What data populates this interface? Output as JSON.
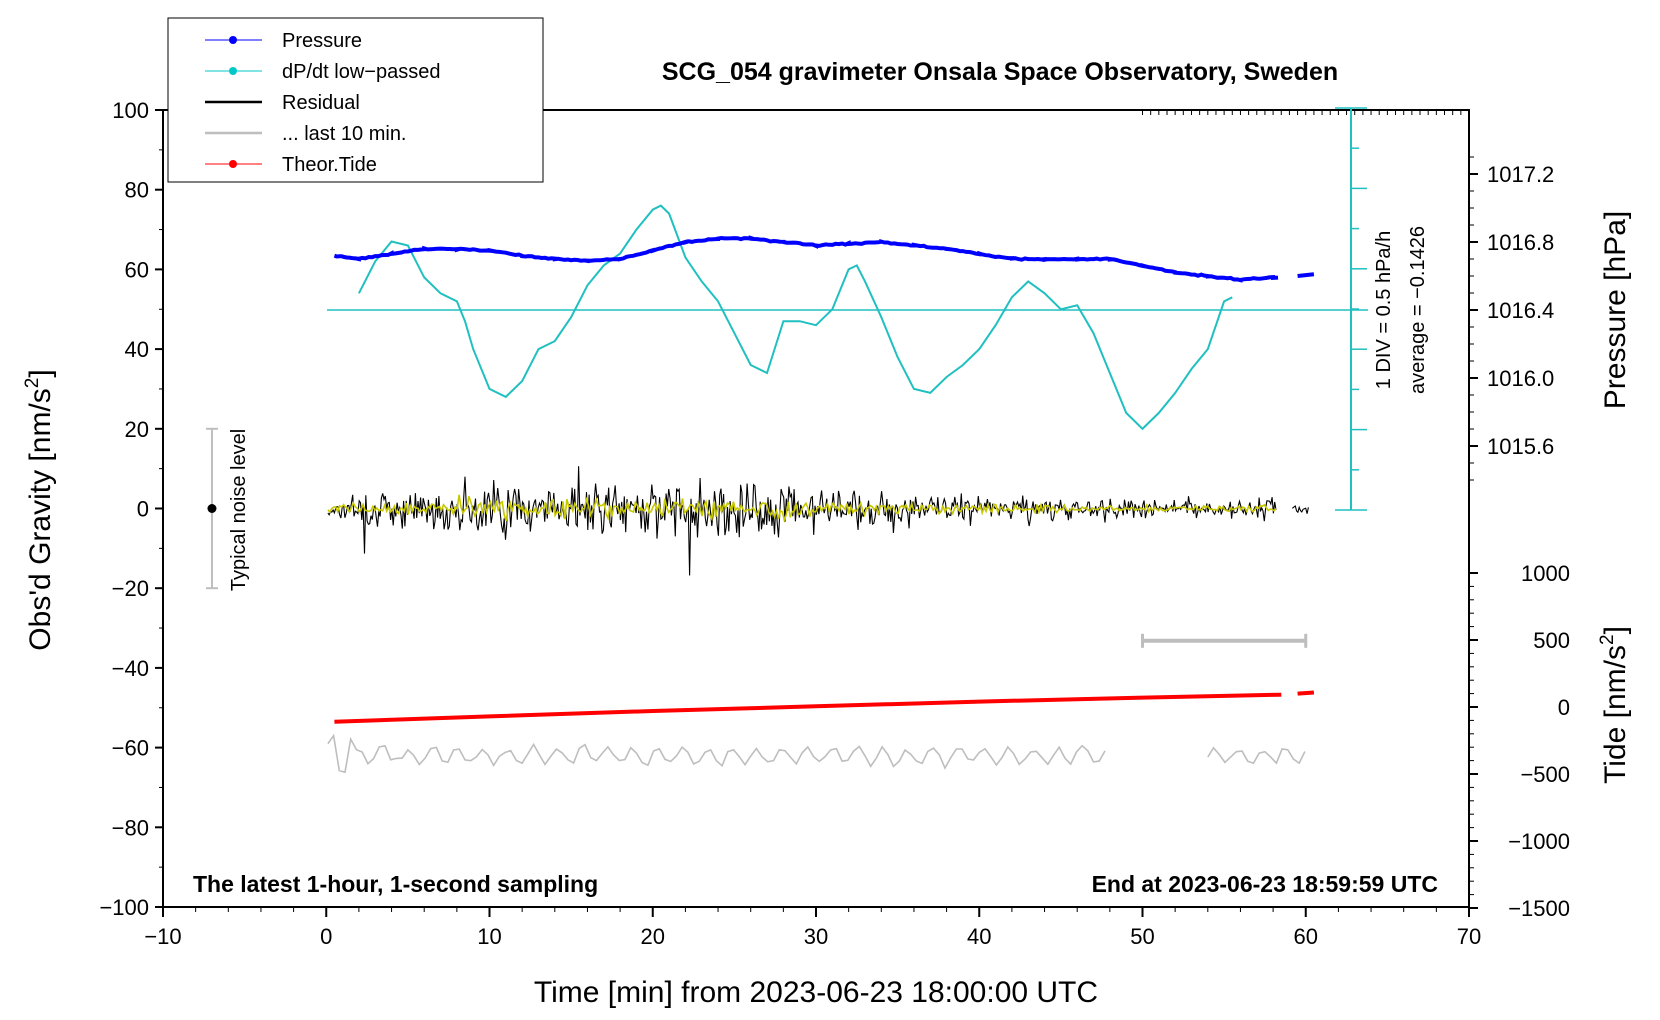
{
  "chart_data": {
    "type": "line",
    "title": "SCG_054 gravimeter Onsala Space Observatory, Sweden",
    "xlabel": "Time [min] from 2023-06-23 18:00:00 UTC",
    "ylabel": "Obs'd Gravity [nm/s",
    "ylabel_sup": "2",
    "ylabel_end": "]",
    "xlim": [
      -10,
      70
    ],
    "ylim": [
      -100,
      100
    ],
    "x_ticks": [
      -10,
      0,
      10,
      20,
      30,
      40,
      50,
      60,
      70
    ],
    "x_tick_labels": [
      "−10",
      "0",
      "10",
      "20",
      "30",
      "40",
      "50",
      "60",
      "70"
    ],
    "y_ticks": [
      -100,
      -80,
      -60,
      -40,
      -20,
      0,
      20,
      40,
      60,
      80,
      100
    ],
    "y_tick_labels": [
      "−100",
      "−80",
      "−60",
      "−40",
      "−20",
      "0",
      "20",
      "40",
      "60",
      "80",
      "100"
    ],
    "pressure_axis": {
      "label": "Pressure [hPa]",
      "ticks": [
        1015.6,
        1016.0,
        1016.4,
        1016.8,
        1017.2
      ],
      "tick_labels": [
        "1015.6",
        "1016.0",
        "1016.4",
        "1016.8",
        "1017.2"
      ]
    },
    "tide_axis": {
      "label": "Tide [nm/s",
      "label_sup": "2",
      "label_end": "]",
      "ticks": [
        -1500,
        -1000,
        -500,
        0,
        500,
        1000
      ],
      "tick_labels": [
        "−1500",
        "−1000",
        "−500",
        "0",
        "500",
        "1000"
      ]
    },
    "dpdt_scale": {
      "div_label": "1 DIV = 0.5 hPa/h",
      "average_label": "average = −0.1426"
    },
    "noise_label": "Typical noise level",
    "noise_range": [
      -20,
      20
    ],
    "bottom_left_note": "The latest 1-hour, 1-second sampling",
    "bottom_right_note": "End at 2023-06-23 18:59:59 UTC",
    "legend": [
      {
        "label": "Pressure",
        "color": "#0000ff",
        "marker": true
      },
      {
        "label": "dP/dt low−passed",
        "color": "#00c8c8",
        "marker": true
      },
      {
        "label": "Residual",
        "color": "#000000",
        "marker": false
      },
      {
        "label": "... last 10 min.",
        "color": "#bebebe",
        "marker": false
      },
      {
        "label": "Theor.Tide",
        "color": "#ff0000",
        "marker": true
      }
    ],
    "colors": {
      "pressure": "#0000ff",
      "dpdt": "#20c0c0",
      "residual": "#000000",
      "residual_smooth": "#c8c800",
      "last10": "#bebebe",
      "tide": "#ff0000"
    },
    "series": [
      {
        "name": "Pressure",
        "unit": "hPa",
        "x": [
          0.5,
          2,
          4,
          6,
          8,
          10,
          12,
          14,
          16,
          18,
          20,
          22,
          24,
          26,
          28,
          30,
          32,
          34,
          36,
          38,
          40,
          42,
          44,
          46,
          48,
          50,
          52,
          54,
          56,
          58,
          59.5,
          60.5
        ],
        "values": [
          1016.72,
          1016.7,
          1016.73,
          1016.76,
          1016.76,
          1016.75,
          1016.72,
          1016.7,
          1016.69,
          1016.7,
          1016.75,
          1016.8,
          1016.82,
          1016.82,
          1016.8,
          1016.78,
          1016.79,
          1016.8,
          1016.78,
          1016.76,
          1016.73,
          1016.7,
          1016.7,
          1016.7,
          1016.7,
          1016.66,
          1016.62,
          1016.6,
          1016.58,
          1016.59,
          1016.6,
          1016.61
        ]
      },
      {
        "name": "dP/dt low-passed",
        "unit": "nm/s2 (plot scale)",
        "x": [
          2,
          3,
          4,
          5,
          6,
          7,
          8,
          8.5,
          9,
          10,
          11,
          12,
          13,
          14,
          15,
          16,
          17,
          18,
          19,
          20,
          20.5,
          21,
          22,
          23,
          24,
          25,
          26,
          27,
          28,
          29,
          30,
          31,
          32,
          32.5,
          33,
          34,
          35,
          36,
          37,
          38,
          39,
          40,
          41,
          42,
          43,
          44,
          45,
          46,
          47,
          48,
          49,
          50,
          51,
          52,
          53,
          54,
          55,
          55.5
        ],
        "values": [
          54,
          62,
          67,
          66,
          58,
          54,
          52,
          47,
          40,
          30,
          28,
          32,
          40,
          42,
          48,
          56,
          61,
          64,
          70,
          75,
          76,
          74,
          63,
          57,
          52,
          44,
          36,
          34,
          47,
          47,
          46,
          50,
          60,
          61,
          57,
          48,
          38,
          30,
          29,
          33,
          36,
          40,
          46,
          53,
          57,
          54,
          50,
          51,
          44,
          34,
          24,
          20,
          24,
          29,
          35,
          40,
          52,
          53
        ]
      },
      {
        "name": "Theor.Tide",
        "unit": "nm/s2",
        "x": [
          0.5,
          10,
          20,
          30,
          40,
          50,
          58.5,
          59.5,
          60.5
        ],
        "values": [
          -110,
          -70,
          -30,
          5,
          40,
          70,
          92,
          100,
          108
        ]
      }
    ]
  }
}
